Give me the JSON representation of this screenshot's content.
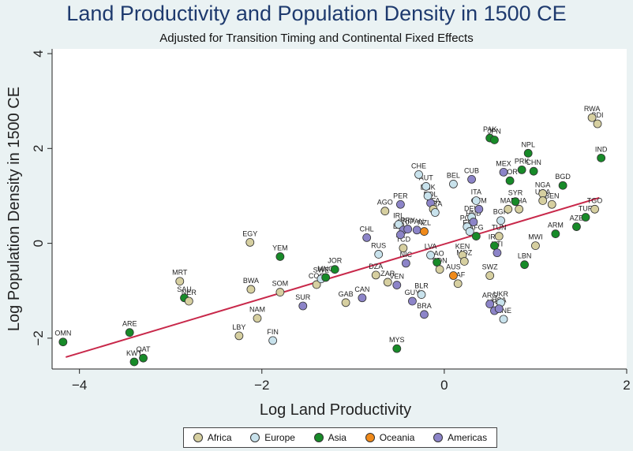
{
  "chart_data": {
    "type": "scatter",
    "title": "Land Productivity and Population Density in 1500 CE",
    "subtitle": "Adjusted for Transition Timing and Continental Fixed Effects",
    "xlabel": "Log Land Productivity",
    "ylabel": "Log Population Density in 1500 CE",
    "xlim": [
      -4.3,
      2.0
    ],
    "ylim": [
      -2.65,
      4.1
    ],
    "xticks": [
      -4,
      -2,
      0,
      2
    ],
    "yticks": [
      -2,
      0,
      2,
      4
    ],
    "grid": false,
    "legend_position": "bottom",
    "fit_line": {
      "x": [
        -4.15,
        1.7
      ],
      "y": [
        -2.4,
        0.96
      ],
      "color": "#c8284a"
    },
    "colors": {
      "Africa": "#d6cfa0",
      "Europe": "#c8e2ec",
      "Asia": "#178a28",
      "Oceania": "#f08a1a",
      "Americas": "#8c84c8"
    },
    "legend": [
      {
        "name": "Africa",
        "color": "#d6cfa0"
      },
      {
        "name": "Europe",
        "color": "#c8e2ec"
      },
      {
        "name": "Asia",
        "color": "#178a28"
      },
      {
        "name": "Oceania",
        "color": "#f08a1a"
      },
      {
        "name": "Americas",
        "color": "#8c84c8"
      }
    ],
    "points": [
      {
        "label": "OMN",
        "x": -4.18,
        "y": -2.08,
        "group": "Asia"
      },
      {
        "label": "ARE",
        "x": -3.45,
        "y": -1.88,
        "group": "Asia"
      },
      {
        "label": "KWT",
        "x": -3.4,
        "y": -2.5,
        "group": "Asia"
      },
      {
        "label": "QAT",
        "x": -3.3,
        "y": -2.42,
        "group": "Asia"
      },
      {
        "label": "MRT",
        "x": -2.9,
        "y": -0.8,
        "group": "Africa"
      },
      {
        "label": "SAU",
        "x": -2.85,
        "y": -1.15,
        "group": "Asia"
      },
      {
        "label": "NER",
        "x": -2.8,
        "y": -1.22,
        "group": "Africa"
      },
      {
        "label": "LBY",
        "x": -2.25,
        "y": -1.95,
        "group": "Africa"
      },
      {
        "label": "EGY",
        "x": -2.13,
        "y": 0.02,
        "group": "Africa"
      },
      {
        "label": "BWA",
        "x": -2.12,
        "y": -0.97,
        "group": "Africa"
      },
      {
        "label": "NAM",
        "x": -2.05,
        "y": -1.58,
        "group": "Africa"
      },
      {
        "label": "FIN",
        "x": -1.88,
        "y": -2.05,
        "group": "Europe"
      },
      {
        "label": "YEM",
        "x": -1.8,
        "y": -0.28,
        "group": "Asia"
      },
      {
        "label": "SOM",
        "x": -1.8,
        "y": -1.03,
        "group": "Africa"
      },
      {
        "label": "SUR",
        "x": -1.55,
        "y": -1.32,
        "group": "Americas"
      },
      {
        "label": "COG",
        "x": -1.4,
        "y": -0.87,
        "group": "Africa"
      },
      {
        "label": "SWE",
        "x": -1.35,
        "y": -0.75,
        "group": "Europe"
      },
      {
        "label": "MNG",
        "x": -1.3,
        "y": -0.72,
        "group": "Asia"
      },
      {
        "label": "JOR",
        "x": -1.2,
        "y": -0.55,
        "group": "Asia"
      },
      {
        "label": "GAB",
        "x": -1.08,
        "y": -1.25,
        "group": "Africa"
      },
      {
        "label": "CAN",
        "x": -0.9,
        "y": -1.15,
        "group": "Americas"
      },
      {
        "label": "CHL",
        "x": -0.85,
        "y": 0.12,
        "group": "Americas"
      },
      {
        "label": "DZA",
        "x": -0.75,
        "y": -0.67,
        "group": "Africa"
      },
      {
        "label": "RUS",
        "x": -0.72,
        "y": -0.23,
        "group": "Europe"
      },
      {
        "label": "AGO",
        "x": -0.65,
        "y": 0.68,
        "group": "Africa"
      },
      {
        "label": "ZAR",
        "x": -0.62,
        "y": -0.82,
        "group": "Africa"
      },
      {
        "label": "VEN",
        "x": -0.52,
        "y": -0.88,
        "group": "Americas"
      },
      {
        "label": "MYS",
        "x": -0.52,
        "y": -2.22,
        "group": "Asia"
      },
      {
        "label": "PER",
        "x": -0.48,
        "y": 0.82,
        "group": "Americas"
      },
      {
        "label": "IRL",
        "x": -0.5,
        "y": 0.4,
        "group": "Europe"
      },
      {
        "label": "CRI",
        "x": -0.45,
        "y": 0.28,
        "group": "Americas"
      },
      {
        "label": "ECU",
        "x": -0.48,
        "y": 0.18,
        "group": "Americas"
      },
      {
        "label": "PRY",
        "x": -0.4,
        "y": 0.3,
        "group": "Americas"
      },
      {
        "label": "TCD",
        "x": -0.45,
        "y": -0.1,
        "group": "Africa"
      },
      {
        "label": "NIC",
        "x": -0.42,
        "y": -0.42,
        "group": "Americas"
      },
      {
        "label": "GUY",
        "x": -0.35,
        "y": -1.22,
        "group": "Americas"
      },
      {
        "label": "BLR",
        "x": -0.25,
        "y": -1.08,
        "group": "Europe"
      },
      {
        "label": "BRA",
        "x": -0.22,
        "y": -1.5,
        "group": "Americas"
      },
      {
        "label": "CHE",
        "x": -0.28,
        "y": 1.45,
        "group": "Europe"
      },
      {
        "label": "AUT",
        "x": -0.2,
        "y": 1.2,
        "group": "Europe"
      },
      {
        "label": "BOL",
        "x": -0.15,
        "y": 0.85,
        "group": "Americas"
      },
      {
        "label": "DNK",
        "x": -0.18,
        "y": 1.0,
        "group": "Europe"
      },
      {
        "label": "BFA",
        "x": -0.12,
        "y": 0.72,
        "group": "Africa"
      },
      {
        "label": "FRA",
        "x": -0.1,
        "y": 0.65,
        "group": "Europe"
      },
      {
        "label": "PAN",
        "x": -0.3,
        "y": 0.28,
        "group": "Americas"
      },
      {
        "label": "NZL",
        "x": -0.22,
        "y": 0.25,
        "group": "Oceania"
      },
      {
        "label": "LVA",
        "x": -0.15,
        "y": -0.25,
        "group": "Europe"
      },
      {
        "label": "LAO",
        "x": -0.08,
        "y": -0.4,
        "group": "Asia"
      },
      {
        "label": "SDN",
        "x": -0.05,
        "y": -0.55,
        "group": "Africa"
      },
      {
        "label": "BEL",
        "x": 0.1,
        "y": 1.25,
        "group": "Europe"
      },
      {
        "label": "AUS",
        "x": 0.1,
        "y": -0.68,
        "group": "Oceania"
      },
      {
        "label": "CUB",
        "x": 0.3,
        "y": 1.35,
        "group": "Americas"
      },
      {
        "label": "CAF",
        "x": 0.15,
        "y": -0.85,
        "group": "Africa"
      },
      {
        "label": "ITA",
        "x": 0.35,
        "y": 0.9,
        "group": "Europe"
      },
      {
        "label": "GTM",
        "x": 0.38,
        "y": 0.72,
        "group": "Americas"
      },
      {
        "label": "DEU",
        "x": 0.3,
        "y": 0.55,
        "group": "Europe"
      },
      {
        "label": "HND",
        "x": 0.32,
        "y": 0.45,
        "group": "Americas"
      },
      {
        "label": "POL",
        "x": 0.25,
        "y": 0.35,
        "group": "Europe"
      },
      {
        "label": "ESP",
        "x": 0.28,
        "y": 0.25,
        "group": "Europe"
      },
      {
        "label": "AFG",
        "x": 0.35,
        "y": 0.15,
        "group": "Asia"
      },
      {
        "label": "KEN",
        "x": 0.2,
        "y": -0.25,
        "group": "Africa"
      },
      {
        "label": "MOZ",
        "x": 0.22,
        "y": -0.38,
        "group": "Africa"
      },
      {
        "label": "SWZ",
        "x": 0.5,
        "y": -0.68,
        "group": "Africa"
      },
      {
        "label": "PAK",
        "x": 0.5,
        "y": 2.22,
        "group": "Asia"
      },
      {
        "label": "JPN",
        "x": 0.55,
        "y": 2.18,
        "group": "Asia"
      },
      {
        "label": "MEX",
        "x": 0.65,
        "y": 1.5,
        "group": "Americas"
      },
      {
        "label": "KOR",
        "x": 0.72,
        "y": 1.32,
        "group": "Asia"
      },
      {
        "label": "MAR",
        "x": 0.7,
        "y": 0.72,
        "group": "Africa"
      },
      {
        "label": "SYR",
        "x": 0.78,
        "y": 0.88,
        "group": "Asia"
      },
      {
        "label": "BGR",
        "x": 0.62,
        "y": 0.48,
        "group": "Europe"
      },
      {
        "label": "TUN",
        "x": 0.6,
        "y": 0.15,
        "group": "Africa"
      },
      {
        "label": "IRN",
        "x": 0.55,
        "y": -0.05,
        "group": "Asia"
      },
      {
        "label": "HTI",
        "x": 0.58,
        "y": -0.2,
        "group": "Americas"
      },
      {
        "label": "ARG",
        "x": 0.5,
        "y": -1.28,
        "group": "Americas"
      },
      {
        "label": "URY",
        "x": 0.55,
        "y": -1.42,
        "group": "Americas"
      },
      {
        "label": "UKR",
        "x": 0.62,
        "y": -1.25,
        "group": "Europe"
      },
      {
        "label": "USA",
        "x": 0.6,
        "y": -1.38,
        "group": "Americas"
      },
      {
        "label": "MNE",
        "x": 0.65,
        "y": -1.6,
        "group": "Europe"
      },
      {
        "label": "NPL",
        "x": 0.92,
        "y": 1.9,
        "group": "Asia"
      },
      {
        "label": "PRK",
        "x": 0.85,
        "y": 1.55,
        "group": "Asia"
      },
      {
        "label": "CHN",
        "x": 0.98,
        "y": 1.52,
        "group": "Asia"
      },
      {
        "label": "GHA",
        "x": 0.82,
        "y": 0.72,
        "group": "Africa"
      },
      {
        "label": "IND",
        "x": 1.72,
        "y": 1.8,
        "group": "Asia"
      },
      {
        "label": "BGD",
        "x": 1.3,
        "y": 1.22,
        "group": "Asia"
      },
      {
        "label": "NGA",
        "x": 1.08,
        "y": 1.05,
        "group": "Africa"
      },
      {
        "label": "UGA",
        "x": 1.08,
        "y": 0.9,
        "group": "Africa"
      },
      {
        "label": "BEN",
        "x": 1.18,
        "y": 0.82,
        "group": "Africa"
      },
      {
        "label": "TGO",
        "x": 1.65,
        "y": 0.72,
        "group": "Africa"
      },
      {
        "label": "TUR",
        "x": 1.55,
        "y": 0.55,
        "group": "Asia"
      },
      {
        "label": "AZE",
        "x": 1.45,
        "y": 0.35,
        "group": "Asia"
      },
      {
        "label": "ARM",
        "x": 1.22,
        "y": 0.2,
        "group": "Asia"
      },
      {
        "label": "MWI",
        "x": 1.0,
        "y": -0.05,
        "group": "Africa"
      },
      {
        "label": "LBN",
        "x": 0.88,
        "y": -0.45,
        "group": "Asia"
      },
      {
        "label": "RWA",
        "x": 1.62,
        "y": 2.65,
        "group": "Africa"
      },
      {
        "label": "BDI",
        "x": 1.68,
        "y": 2.52,
        "group": "Africa"
      }
    ]
  }
}
